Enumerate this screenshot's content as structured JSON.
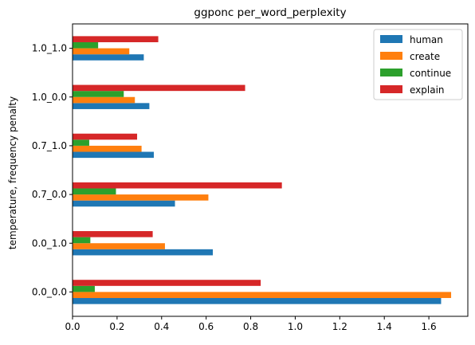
{
  "chart_data": {
    "type": "bar",
    "orientation": "horizontal",
    "title": "ggponc per_word_perplexity",
    "xlabel": "",
    "ylabel": "temperature, frequency penalty",
    "categories": [
      "0.0_0.0",
      "0.0_1.0",
      "0.7_0.0",
      "0.7_1.0",
      "1.0_0.0",
      "1.0_1.0"
    ],
    "series": [
      {
        "name": "human",
        "color": "#1f77b4",
        "values": [
          1.655,
          0.63,
          0.46,
          0.365,
          0.345,
          0.32
        ]
      },
      {
        "name": "create",
        "color": "#ff7f0e",
        "values": [
          1.7,
          0.415,
          0.61,
          0.31,
          0.28,
          0.255
        ]
      },
      {
        "name": "continue",
        "color": "#2ca02c",
        "values": [
          0.1,
          0.08,
          0.195,
          0.075,
          0.23,
          0.115
        ]
      },
      {
        "name": "explain",
        "color": "#d62728",
        "values": [
          0.845,
          0.36,
          0.94,
          0.29,
          0.775,
          0.385
        ]
      }
    ],
    "xlim": [
      0,
      1.775
    ],
    "xticks": [
      0.0,
      0.2,
      0.4,
      0.6,
      0.8,
      1.0,
      1.2,
      1.4,
      1.6
    ],
    "grid": false,
    "legend_position": "top-right"
  }
}
